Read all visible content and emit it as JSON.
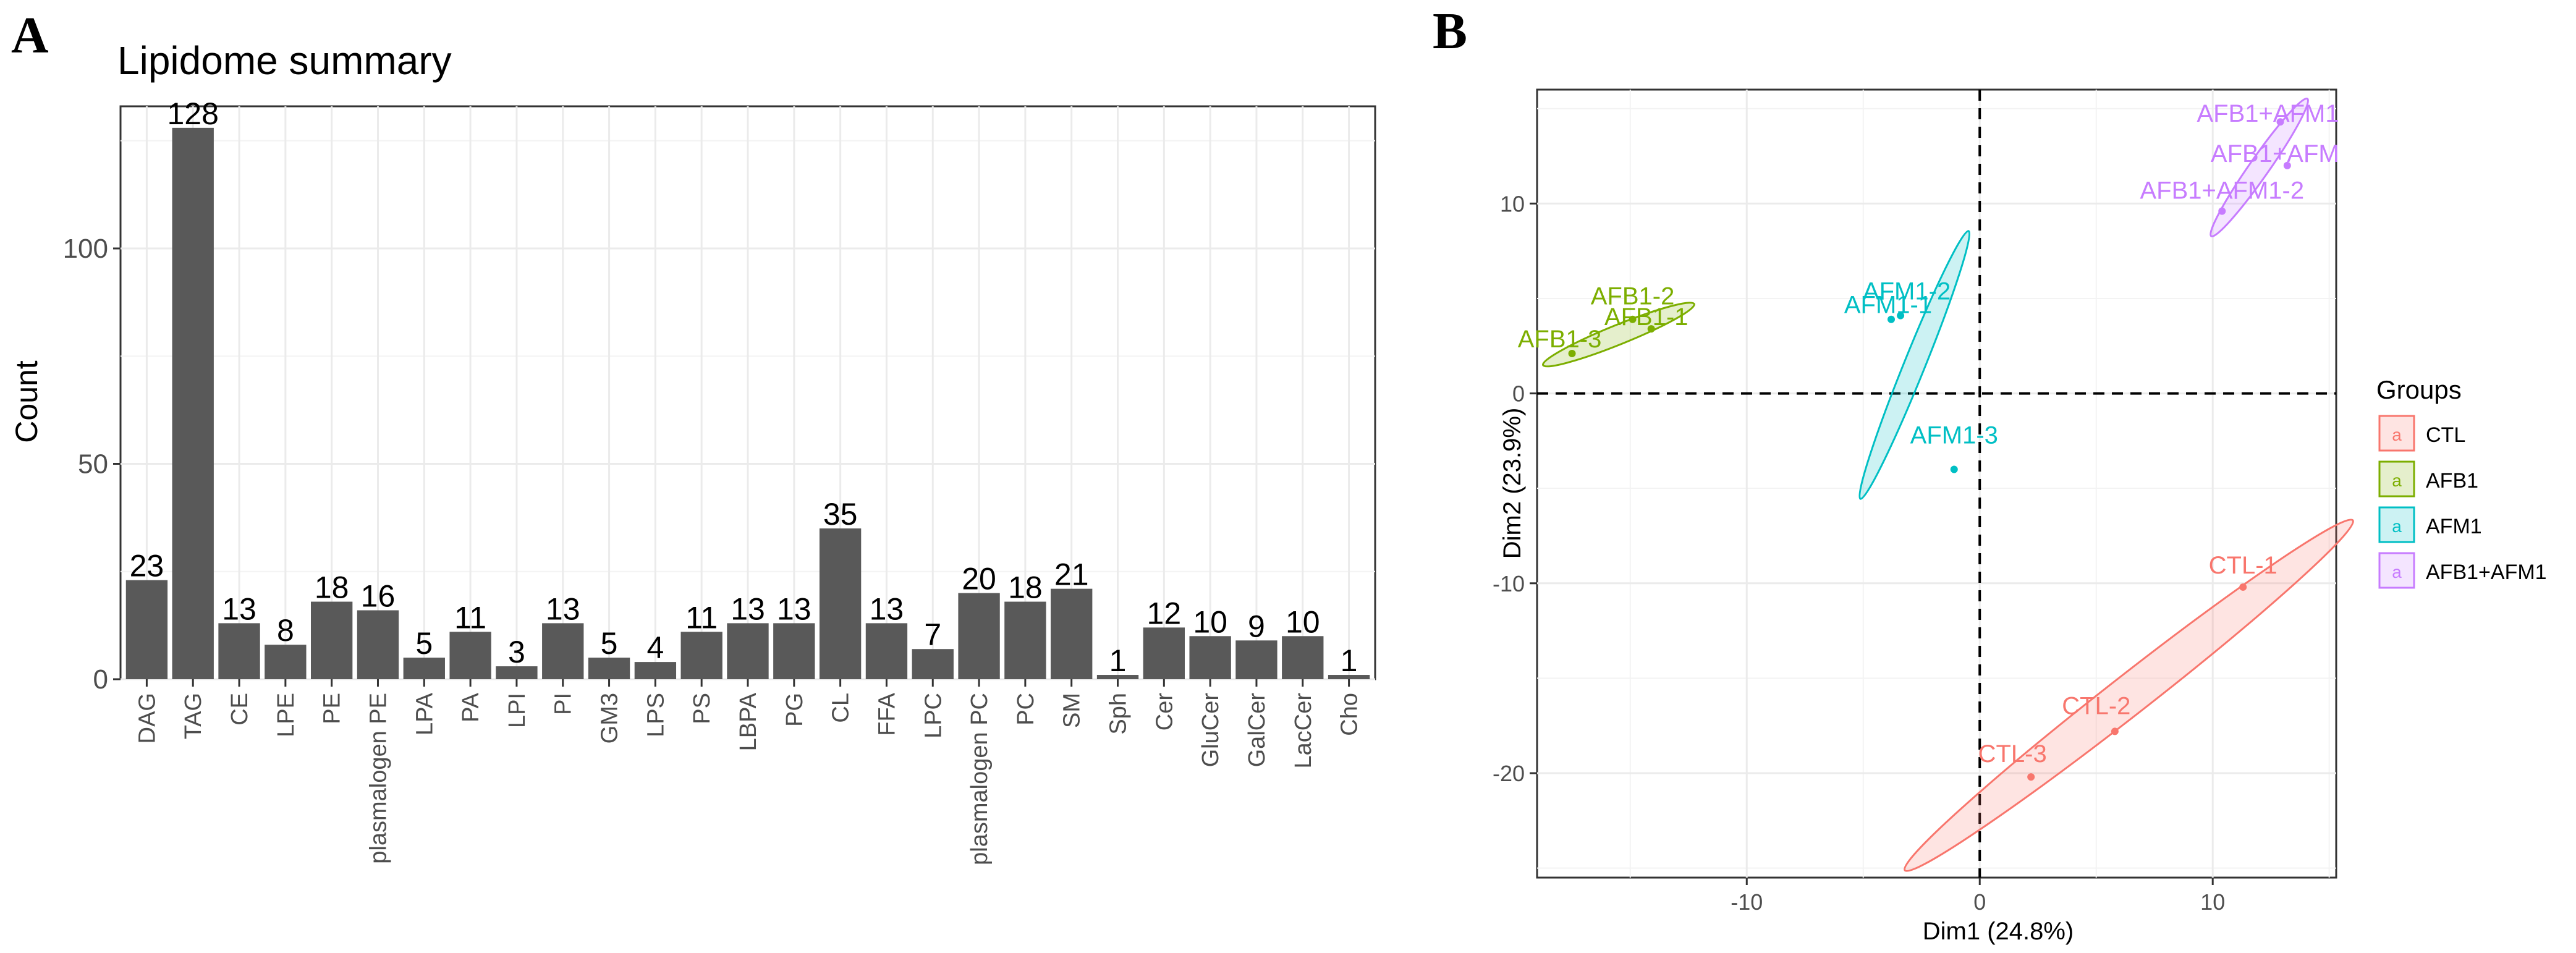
{
  "figure": {
    "panel_a_label": "A",
    "panel_b_label": "B"
  },
  "colors": {
    "bar": "#595959",
    "grid": "#ebebeb",
    "axis": "#333333",
    "CTL": "#F8766D",
    "AFB1": "#7CAE00",
    "AFM1": "#00BFC4",
    "AFB1+AFM1": "#C77CFF"
  },
  "chart_data": [
    {
      "type": "bar",
      "title": "Lipidome summary",
      "xlabel": "",
      "ylabel": "Count",
      "ylim": [
        0,
        133
      ],
      "yticks": [
        0,
        50,
        100
      ],
      "grid": true,
      "categories": [
        "DAG",
        "TAG",
        "CE",
        "LPE",
        "PE",
        "plasmalogen PE",
        "LPA",
        "PA",
        "LPI",
        "PI",
        "GM3",
        "LPS",
        "PS",
        "LBPA",
        "PG",
        "CL",
        "FFA",
        "LPC",
        "plasmalogen PC",
        "PC",
        "SM",
        "Sph",
        "Cer",
        "GluCer",
        "GalCer",
        "LacCer",
        "Cho"
      ],
      "values": [
        23,
        128,
        13,
        8,
        18,
        16,
        5,
        11,
        3,
        13,
        5,
        4,
        11,
        13,
        13,
        35,
        13,
        7,
        20,
        18,
        21,
        1,
        12,
        10,
        9,
        10,
        1
      ]
    },
    {
      "type": "scatter",
      "title": "",
      "xlabel": "Dim1 (24.8%)",
      "ylabel": "Dim2 (23.9%)",
      "xlim": [
        -19,
        15.3
      ],
      "ylim": [
        -25.5,
        16
      ],
      "xticks": [
        -10,
        0,
        10
      ],
      "yticks": [
        -20,
        -10,
        0,
        10
      ],
      "grid": true,
      "reference_lines": {
        "x": 0,
        "y": 0,
        "style": "dashed"
      },
      "legend": {
        "title": "Groups",
        "position": "right",
        "entries": [
          "CTL",
          "AFB1",
          "AFM1",
          "AFB1+AFM1"
        ],
        "key_glyph": "a"
      },
      "series": [
        {
          "name": "CTL",
          "color_key": "CTL",
          "points": [
            {
              "label": "CTL-1",
              "x": 11.3,
              "y": -10.2
            },
            {
              "label": "CTL-2",
              "x": 5.8,
              "y": -17.8
            },
            {
              "label": "CTL-3",
              "x": 2.2,
              "y": -20.2
            }
          ],
          "ellipse": {
            "cx": 6.4,
            "cy": -15.9,
            "rx": 12.2,
            "ry": 0.85,
            "angle_deg": 38
          }
        },
        {
          "name": "AFB1",
          "color_key": "AFB1",
          "points": [
            {
              "label": "AFB1-1",
              "x": -14.1,
              "y": 3.4
            },
            {
              "label": "AFB1-2",
              "x": -14.9,
              "y": 3.9
            },
            {
              "label": "AFB1-3",
              "x": -17.5,
              "y": 2.1
            }
          ],
          "ellipse": {
            "cx": -15.5,
            "cy": 3.1,
            "rx": 3.5,
            "ry": 0.42,
            "angle_deg": 22
          }
        },
        {
          "name": "AFM1",
          "color_key": "AFM1",
          "points": [
            {
              "label": "AFM1-1",
              "x": -3.8,
              "y": 3.9
            },
            {
              "label": "AFM1-2",
              "x": -3.4,
              "y": 4.1
            },
            {
              "label": "AFM1-3",
              "x": -1.1,
              "y": -4.0
            }
          ],
          "ellipse": {
            "cx": -2.8,
            "cy": 1.5,
            "rx": 6.2,
            "ry": 0.45,
            "angle_deg": 68
          }
        },
        {
          "name": "AFB1+AFM1",
          "color_key": "AFB1+AFM1",
          "points": [
            {
              "label": "AFB1+AFM1",
              "x": 12.9,
              "y": 14.3
            },
            {
              "label": "AFB1+AFM",
              "x": 13.2,
              "y": 12.0
            },
            {
              "label": "AFB1+AFM1-2",
              "x": 10.4,
              "y": 9.6
            }
          ],
          "ellipse": {
            "cx": 12.0,
            "cy": 11.9,
            "rx": 3.6,
            "ry": 0.42,
            "angle_deg": 55
          }
        }
      ]
    }
  ]
}
